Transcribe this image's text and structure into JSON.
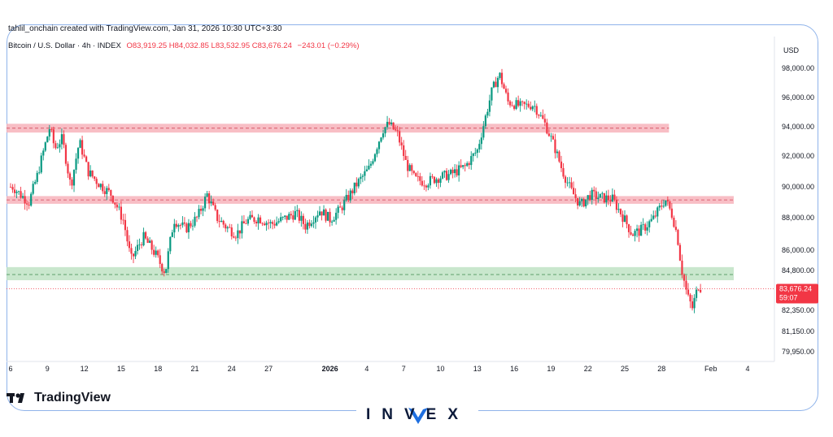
{
  "header": {
    "created_by": "tahlil_onchain created with TradingView.com, Jan 31, 2026 10:30 UTC+3:30",
    "symbol": "Bitcoin / U.S. Dollar · 4h · INDEX",
    "ohlc": "O83,919.25 H84,032.85 L83,532.95 C83,676.24",
    "change": "−243.01 (−0.29%)"
  },
  "price_label": {
    "value": "83,676.24",
    "timer": "59:07"
  },
  "branding": {
    "tradingview": "TradingView",
    "invex": "INVEX"
  },
  "colors": {
    "up": "#089981",
    "down": "#f23645",
    "resistance_zone": "#f7b3bb",
    "support_zone": "#bfe3c4"
  },
  "chart_data": {
    "type": "candlestick",
    "currency": "USD",
    "timeframe": "4h",
    "y_ticks": [
      {
        "label": "98,000.00",
        "value": 98000
      },
      {
        "label": "96,000.00",
        "value": 96000
      },
      {
        "label": "94,000.00",
        "value": 94000
      },
      {
        "label": "92,000.00",
        "value": 92000
      },
      {
        "label": "90,000.00",
        "value": 90000
      },
      {
        "label": "88,000.00",
        "value": 88000
      },
      {
        "label": "86,000.00",
        "value": 86000
      },
      {
        "label": "84,800.00",
        "value": 84800
      },
      {
        "label": "82,350.00",
        "value": 82350
      },
      {
        "label": "81,150.00",
        "value": 81150
      },
      {
        "label": "79,950.00",
        "value": 79950
      }
    ],
    "x_ticks": [
      {
        "label": "6",
        "day": 6
      },
      {
        "label": "9",
        "day": 9
      },
      {
        "label": "12",
        "day": 12
      },
      {
        "label": "15",
        "day": 15
      },
      {
        "label": "18",
        "day": 18
      },
      {
        "label": "21",
        "day": 21
      },
      {
        "label": "24",
        "day": 24
      },
      {
        "label": "27",
        "day": 27
      },
      {
        "label": "2026",
        "day": 32
      },
      {
        "label": "4",
        "day": 35
      },
      {
        "label": "7",
        "day": 38
      },
      {
        "label": "10",
        "day": 41
      },
      {
        "label": "13",
        "day": 44
      },
      {
        "label": "16",
        "day": 47
      },
      {
        "label": "19",
        "day": 50
      },
      {
        "label": "22",
        "day": 53
      },
      {
        "label": "25",
        "day": 56
      },
      {
        "label": "28",
        "day": 59
      },
      {
        "label": "Feb",
        "day": 63
      },
      {
        "label": "4",
        "day": 66
      }
    ],
    "zones": [
      {
        "kind": "resistance",
        "low": 93600,
        "high": 94200,
        "mid": 93900,
        "start_day": 6,
        "end_day": 59.6
      },
      {
        "kind": "resistance",
        "low": 88900,
        "high": 89400,
        "mid": 89150,
        "start_day": 6,
        "end_day": 66
      },
      {
        "kind": "support",
        "low": 84200,
        "high": 85000,
        "mid": 84550,
        "start_day": 6,
        "end_day": 66
      }
    ],
    "last_close": 83676.24,
    "path": [
      [
        6.2,
        90000
      ],
      [
        6.8,
        89500
      ],
      [
        7.5,
        89000
      ],
      [
        8.2,
        90800
      ],
      [
        9.2,
        94000
      ],
      [
        9.6,
        92500
      ],
      [
        10.2,
        93200
      ],
      [
        10.9,
        90000
      ],
      [
        11.6,
        93000
      ],
      [
        12.3,
        91000
      ],
      [
        13.2,
        90200
      ],
      [
        14.2,
        89500
      ],
      [
        15.2,
        87800
      ],
      [
        15.8,
        85400
      ],
      [
        16.8,
        86800
      ],
      [
        17.6,
        86000
      ],
      [
        18.2,
        85200
      ],
      [
        18.6,
        84700
      ],
      [
        19.3,
        87900
      ],
      [
        20.2,
        87300
      ],
      [
        21.2,
        88000
      ],
      [
        22.0,
        89500
      ],
      [
        22.8,
        88000
      ],
      [
        23.6,
        87400
      ],
      [
        24.4,
        87000
      ],
      [
        25.2,
        87800
      ],
      [
        26.2,
        88000
      ],
      [
        27.2,
        87600
      ],
      [
        28.2,
        87900
      ],
      [
        29.2,
        88300
      ],
      [
        30.0,
        87500
      ],
      [
        31.2,
        88500
      ],
      [
        32.0,
        87900
      ],
      [
        32.8,
        88500
      ],
      [
        34.2,
        90200
      ],
      [
        35.2,
        91200
      ],
      [
        36.3,
        93800
      ],
      [
        36.8,
        94200
      ],
      [
        37.5,
        93500
      ],
      [
        38.2,
        91500
      ],
      [
        38.9,
        90500
      ],
      [
        39.8,
        90300
      ],
      [
        40.8,
        90600
      ],
      [
        41.8,
        90800
      ],
      [
        43.0,
        91300
      ],
      [
        44.0,
        92400
      ],
      [
        45.2,
        96500
      ],
      [
        45.8,
        97600
      ],
      [
        46.5,
        95700
      ],
      [
        47.5,
        95400
      ],
      [
        48.6,
        95500
      ],
      [
        49.5,
        94200
      ],
      [
        50.2,
        92800
      ],
      [
        50.9,
        91100
      ],
      [
        51.6,
        89800
      ],
      [
        52.4,
        88800
      ],
      [
        53.2,
        89500
      ],
      [
        54.0,
        89300
      ],
      [
        55.0,
        89200
      ],
      [
        55.9,
        88000
      ],
      [
        56.6,
        87000
      ],
      [
        57.3,
        87200
      ],
      [
        58.3,
        87900
      ],
      [
        59.3,
        89200
      ],
      [
        59.9,
        88100
      ],
      [
        60.3,
        86800
      ],
      [
        60.6,
        85000
      ],
      [
        61.1,
        83200
      ],
      [
        61.5,
        82500
      ],
      [
        62.0,
        83900
      ],
      [
        62.3,
        83676
      ]
    ]
  }
}
